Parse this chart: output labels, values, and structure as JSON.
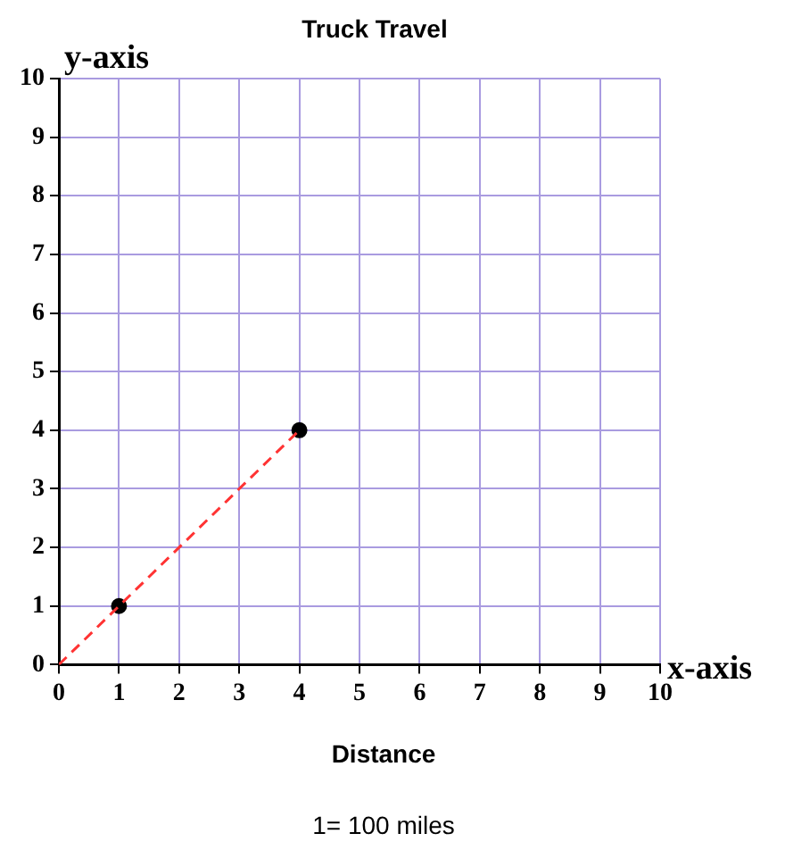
{
  "chart_data": {
    "type": "line",
    "title": "Truck Travel",
    "xlabel": "Distance",
    "ylabel": "y-axis",
    "annotations": [
      "x-axis",
      "1= 100 miles"
    ],
    "xlim": [
      0,
      10
    ],
    "ylim": [
      0,
      10
    ],
    "xticks": [
      0,
      1,
      2,
      3,
      4,
      5,
      6,
      7,
      8,
      9,
      10
    ],
    "yticks": [
      0,
      1,
      2,
      3,
      4,
      5,
      6,
      7,
      8,
      9,
      10
    ],
    "grid": true,
    "legend": false,
    "series": [
      {
        "type": "line",
        "x": [
          0,
          4
        ],
        "values": [
          0,
          4
        ],
        "color": "#ff3333",
        "line_style": "dashed",
        "marker": "none"
      },
      {
        "type": "scatter",
        "x": [
          1,
          4
        ],
        "values": [
          1,
          4
        ],
        "color": "#000000",
        "marker": "circle"
      }
    ]
  }
}
